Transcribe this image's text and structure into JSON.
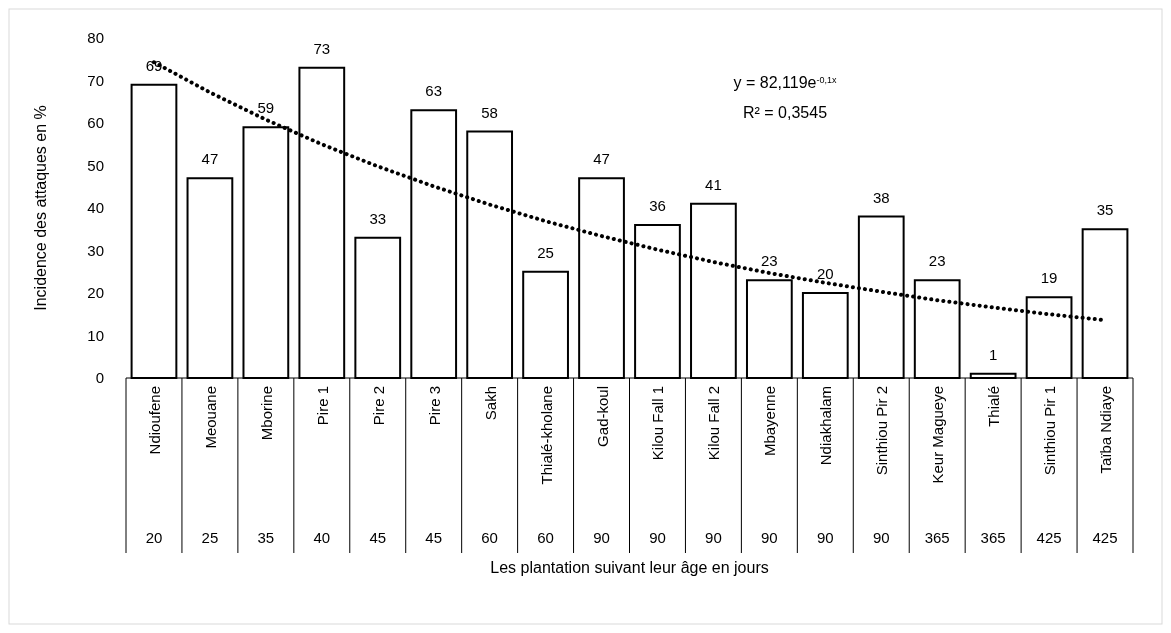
{
  "chart_data": {
    "type": "bar",
    "xlabel": "Les plantation suivant leur âge en jours",
    "ylabel": "Incidence des attaques en %",
    "categories": [
      "Ndioufene",
      "Meouane",
      "Mborine",
      "Pire 1",
      "Pire 2",
      "Pire 3",
      "Sakh",
      "Thialé-kholane",
      "Gad-koul",
      "Kilou Fall 1",
      "Kilou Fall 2",
      "Mbayenne",
      "Ndiakhalam",
      "Sinthiou Pir 2",
      "Keur Magueye",
      "Thialé",
      "Sinthiou Pir 1",
      "Taïba Ndiaye"
    ],
    "series": [
      {
        "color": "#ffffff",
        "values": [
          69,
          47,
          59,
          73,
          33,
          63,
          58,
          25,
          47,
          36,
          41,
          23,
          20,
          38,
          23,
          1,
          19,
          35
        ],
        "value_labels": [
          "69",
          "47",
          "59",
          "73",
          "33",
          "63",
          "58",
          "25",
          "47",
          "36",
          "41",
          "23",
          "20",
          "38",
          "23",
          "1",
          "19",
          "35"
        ]
      },
      {
        "type": "line",
        "color": "#000000",
        "line_style": "dotted",
        "marker": "none",
        "x": [
          "Ndioufene",
          "Meouane",
          "Mborine",
          "Pire 1",
          "Pire 2",
          "Pire 3",
          "Sakh",
          "Thialé-kholane",
          "Gad-koul",
          "Kilou Fall 1",
          "Kilou Fall 2",
          "Mbayenne",
          "Ndiakhalam",
          "Sinthiou Pir 2",
          "Keur Magueye",
          "Thialé",
          "Sinthiou Pir 1",
          "Taïba Ndiaye"
        ],
        "values": [
          74.3,
          67.2,
          60.8,
          55,
          49.8,
          45.1,
          40.8,
          36.9,
          33.4,
          30.2,
          27.3,
          24.7,
          22.4,
          20.3,
          18.3,
          16.6,
          15,
          13.6
        ]
      }
    ],
    "ylim": [
      0,
      80
    ],
    "yticks": [
      0,
      10,
      20,
      30,
      40,
      50,
      60,
      70,
      80
    ],
    "grid": false,
    "annotations": [
      "y = 82,119e$^{-0,1x}$",
      "R² = 0,3545",
      "20",
      "25",
      "35",
      "40",
      "45",
      "45",
      "60",
      "60",
      "90",
      "90",
      "90",
      "90",
      "90",
      "90",
      "365",
      "365",
      "425",
      "425"
    ]
  }
}
